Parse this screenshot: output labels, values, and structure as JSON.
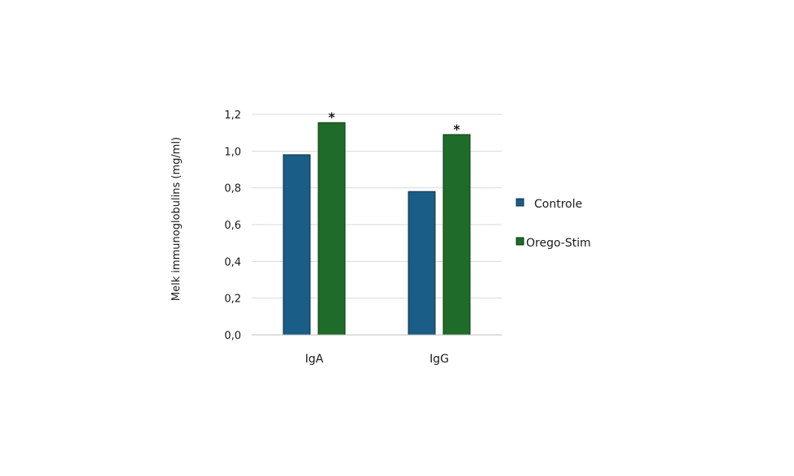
{
  "chart_data": {
    "type": "bar",
    "categories": [
      "IgA",
      "IgG"
    ],
    "series": [
      {
        "name": "Controle",
        "values": [
          0.98,
          0.78
        ],
        "color": "#1a5d86",
        "edge": "#0d2f45"
      },
      {
        "name": "Orego-Stim",
        "values": [
          1.155,
          1.09
        ],
        "color": "#1e6b2a",
        "edge": "#0f3a16"
      }
    ],
    "significance": [
      {
        "category": "IgA",
        "series": "Orego-Stim",
        "label": "*"
      },
      {
        "category": "IgG",
        "series": "Orego-Stim",
        "label": "*"
      }
    ],
    "ylabel": "Melk immunoglobulins (mg/ml)",
    "ylim": [
      0,
      1.2
    ],
    "yticks": [
      0,
      0.2,
      0.4,
      0.6,
      0.8,
      1.0,
      1.2
    ],
    "ytick_labels": [
      "0,0",
      "0,2",
      "0,4",
      "0,6",
      "0,8",
      "1,0",
      "1,2"
    ],
    "grid": true,
    "legend": "right"
  }
}
